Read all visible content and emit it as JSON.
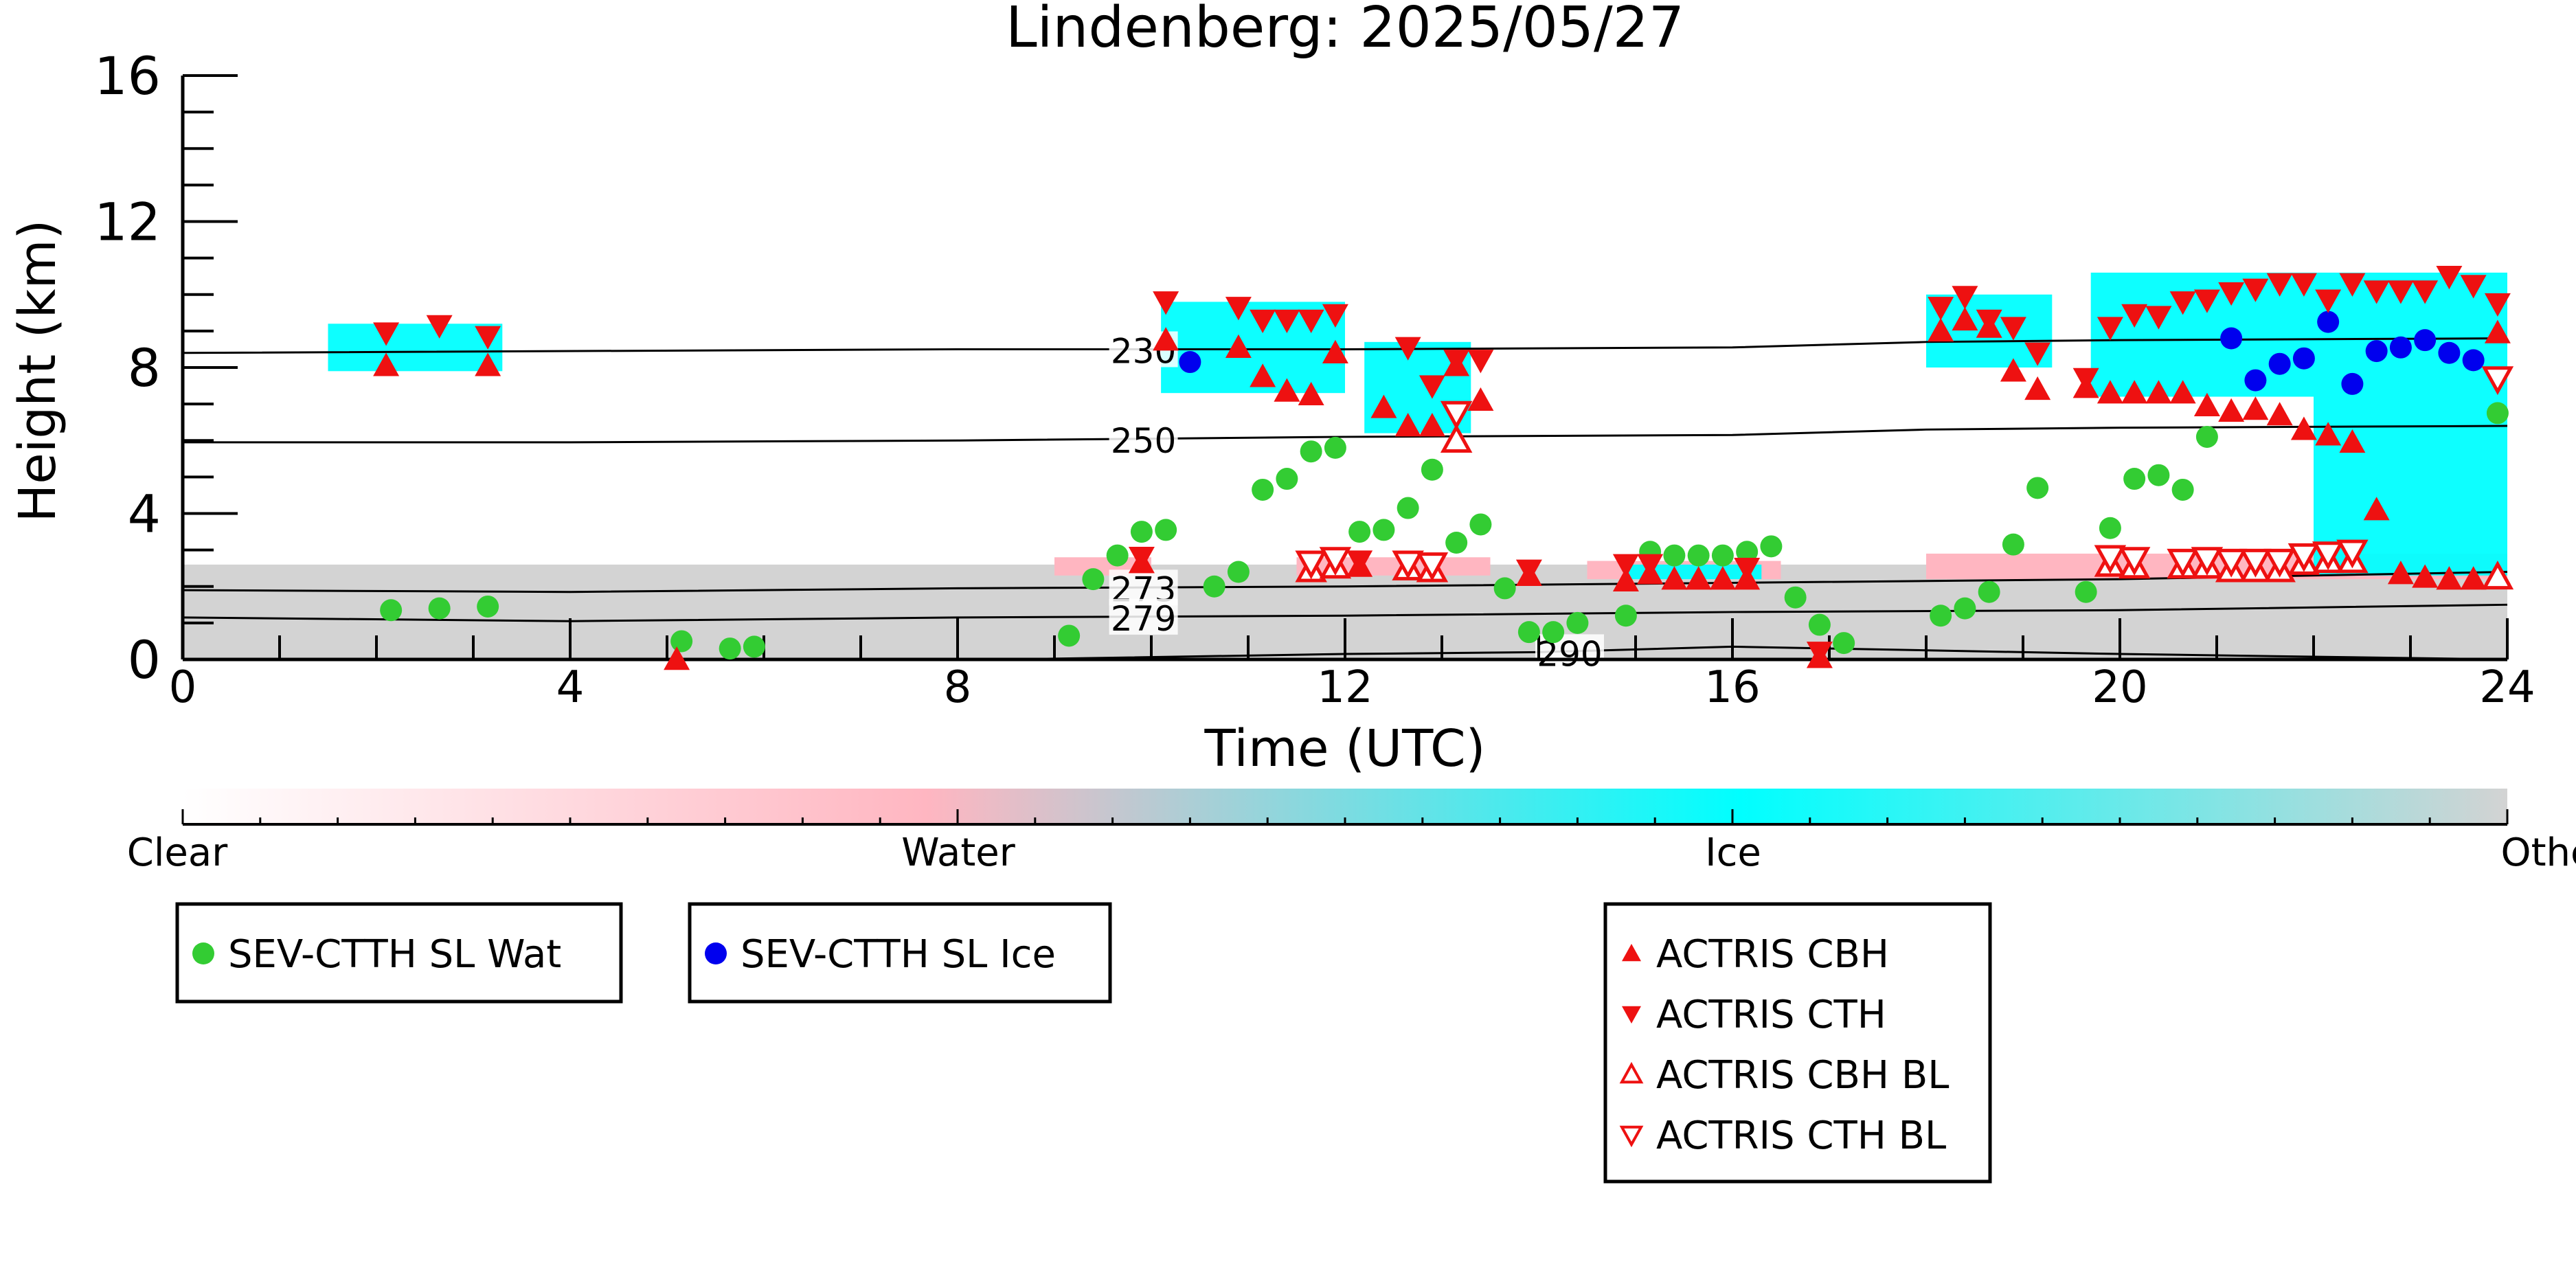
{
  "chart_data": {
    "type": "scatter",
    "title": "Lindenberg: 2025/05/27",
    "xlabel": "Time (UTC)",
    "ylabel": "Height (km)",
    "xlim": [
      0,
      24
    ],
    "ylim": [
      0,
      16
    ],
    "x_ticks": [
      0,
      4,
      8,
      12,
      16,
      20,
      24
    ],
    "y_ticks": [
      0,
      4,
      8,
      12,
      16
    ],
    "grid": false,
    "colorbar": {
      "labels": [
        "Clear",
        "Water",
        "Ice",
        "Other"
      ],
      "colors": [
        "#ffffff",
        "#ffb6c1",
        "#00ffff",
        "#d3d3d3"
      ]
    },
    "temperature_contours": [
      {
        "label": "230",
        "x": [
          0,
          8,
          12,
          16,
          18,
          20,
          24
        ],
        "y": [
          8.4,
          8.5,
          8.5,
          8.55,
          8.7,
          8.75,
          8.8
        ],
        "label_x": 9.6
      },
      {
        "label": "250",
        "x": [
          0,
          4,
          8,
          12,
          16,
          18,
          20,
          24
        ],
        "y": [
          5.95,
          5.95,
          6.0,
          6.1,
          6.15,
          6.3,
          6.35,
          6.4
        ],
        "label_x": 9.6
      },
      {
        "label": "273",
        "x": [
          0,
          4,
          8,
          12,
          16,
          20,
          24
        ],
        "y": [
          1.9,
          1.85,
          1.95,
          2.0,
          2.1,
          2.2,
          2.4
        ],
        "label_x": 9.6
      },
      {
        "label": "279",
        "x": [
          0,
          4,
          8,
          12,
          16,
          20,
          24
        ],
        "y": [
          1.15,
          1.05,
          1.15,
          1.2,
          1.3,
          1.35,
          1.5
        ],
        "label_x": 9.6
      },
      {
        "label": "290",
        "x": [
          8.5,
          12,
          14,
          16,
          20,
          24
        ],
        "y": [
          0.0,
          0.15,
          0.2,
          0.35,
          0.15,
          0.0
        ],
        "label_x": 14.0
      }
    ],
    "series": [
      {
        "name": "SEV-CTTH SL Wat",
        "marker": "circle",
        "color": "#33cc33",
        "points": [
          [
            2.15,
            1.35
          ],
          [
            2.65,
            1.4
          ],
          [
            3.15,
            1.45
          ],
          [
            5.15,
            0.5
          ],
          [
            5.65,
            0.3
          ],
          [
            5.9,
            0.35
          ],
          [
            9.15,
            0.65
          ],
          [
            9.4,
            2.2
          ],
          [
            9.65,
            2.85
          ],
          [
            9.9,
            3.5
          ],
          [
            10.15,
            3.55
          ],
          [
            10.65,
            2.0
          ],
          [
            10.9,
            2.4
          ],
          [
            11.15,
            4.65
          ],
          [
            11.4,
            4.95
          ],
          [
            11.65,
            5.7
          ],
          [
            11.9,
            5.8
          ],
          [
            12.15,
            3.5
          ],
          [
            12.4,
            3.55
          ],
          [
            12.65,
            4.15
          ],
          [
            12.9,
            5.2
          ],
          [
            13.15,
            3.2
          ],
          [
            13.4,
            3.7
          ],
          [
            13.65,
            1.95
          ],
          [
            13.9,
            0.75
          ],
          [
            14.15,
            0.75
          ],
          [
            14.4,
            1.0
          ],
          [
            14.9,
            1.2
          ],
          [
            15.15,
            2.95
          ],
          [
            15.4,
            2.85
          ],
          [
            15.65,
            2.85
          ],
          [
            15.9,
            2.85
          ],
          [
            16.15,
            2.95
          ],
          [
            16.4,
            3.1
          ],
          [
            16.65,
            1.7
          ],
          [
            16.9,
            0.95
          ],
          [
            17.15,
            0.45
          ],
          [
            18.15,
            1.2
          ],
          [
            18.4,
            1.4
          ],
          [
            18.65,
            1.85
          ],
          [
            18.9,
            3.15
          ],
          [
            19.15,
            4.7
          ],
          [
            19.65,
            1.85
          ],
          [
            19.9,
            3.6
          ],
          [
            20.15,
            4.95
          ],
          [
            20.4,
            5.05
          ],
          [
            20.65,
            4.65
          ],
          [
            20.9,
            6.1
          ],
          [
            23.9,
            6.75
          ]
        ]
      },
      {
        "name": "SEV-CTTH SL Ice",
        "marker": "circle",
        "color": "#0000ee",
        "points": [
          [
            10.4,
            8.15
          ],
          [
            21.15,
            8.8
          ],
          [
            21.4,
            7.65
          ],
          [
            21.65,
            8.1
          ],
          [
            21.9,
            8.25
          ],
          [
            22.15,
            9.25
          ],
          [
            22.4,
            7.55
          ],
          [
            22.65,
            8.45
          ],
          [
            22.9,
            8.55
          ],
          [
            23.15,
            8.75
          ],
          [
            23.4,
            8.4
          ],
          [
            23.65,
            8.2
          ]
        ]
      },
      {
        "name": "ACTRIS CBH",
        "marker": "triangle-up",
        "color": "#ee1111",
        "points": [
          [
            2.1,
            8.05
          ],
          [
            3.15,
            8.05
          ],
          [
            5.1,
            0.0
          ],
          [
            9.9,
            2.65
          ],
          [
            10.15,
            8.75
          ],
          [
            10.9,
            8.55
          ],
          [
            11.15,
            7.75
          ],
          [
            11.4,
            7.35
          ],
          [
            11.65,
            7.25
          ],
          [
            11.9,
            8.4
          ],
          [
            12.15,
            2.55
          ],
          [
            12.4,
            6.9
          ],
          [
            12.65,
            6.4
          ],
          [
            12.9,
            6.4
          ],
          [
            13.15,
            8.05
          ],
          [
            13.4,
            7.1
          ],
          [
            13.9,
            2.3
          ],
          [
            14.9,
            2.15
          ],
          [
            15.15,
            2.35
          ],
          [
            15.4,
            2.2
          ],
          [
            15.65,
            2.2
          ],
          [
            15.9,
            2.2
          ],
          [
            16.15,
            2.2
          ],
          [
            16.9,
            0.05
          ],
          [
            18.15,
            9.0
          ],
          [
            18.4,
            9.3
          ],
          [
            18.65,
            9.1
          ],
          [
            18.9,
            7.9
          ],
          [
            19.15,
            7.4
          ],
          [
            19.65,
            7.45
          ],
          [
            19.9,
            7.3
          ],
          [
            20.15,
            7.3
          ],
          [
            20.4,
            7.3
          ],
          [
            20.65,
            7.3
          ],
          [
            20.9,
            6.95
          ],
          [
            21.15,
            6.8
          ],
          [
            21.4,
            6.85
          ],
          [
            21.65,
            6.7
          ],
          [
            21.9,
            6.3
          ],
          [
            22.15,
            6.15
          ],
          [
            22.4,
            5.95
          ],
          [
            22.65,
            4.1
          ],
          [
            22.9,
            2.35
          ],
          [
            23.15,
            2.25
          ],
          [
            23.4,
            2.2
          ],
          [
            23.65,
            2.2
          ],
          [
            23.9,
            2.35
          ],
          [
            23.9,
            8.95
          ]
        ]
      },
      {
        "name": "ACTRIS CTH",
        "marker": "triangle-down",
        "color": "#ee1111",
        "points": [
          [
            2.1,
            8.95
          ],
          [
            2.65,
            9.15
          ],
          [
            3.15,
            8.85
          ],
          [
            9.9,
            2.8
          ],
          [
            10.15,
            9.8
          ],
          [
            10.9,
            9.65
          ],
          [
            11.15,
            9.3
          ],
          [
            11.4,
            9.3
          ],
          [
            11.65,
            9.3
          ],
          [
            11.9,
            9.45
          ],
          [
            12.15,
            2.7
          ],
          [
            12.65,
            8.55
          ],
          [
            12.9,
            7.5
          ],
          [
            13.15,
            8.2
          ],
          [
            13.4,
            8.2
          ],
          [
            13.9,
            2.45
          ],
          [
            14.9,
            2.6
          ],
          [
            15.15,
            2.6
          ],
          [
            16.15,
            2.5
          ],
          [
            16.9,
            0.2
          ],
          [
            18.15,
            9.65
          ],
          [
            18.4,
            9.95
          ],
          [
            18.65,
            9.3
          ],
          [
            18.9,
            9.1
          ],
          [
            19.15,
            8.4
          ],
          [
            19.65,
            7.7
          ],
          [
            19.9,
            9.1
          ],
          [
            20.15,
            9.45
          ],
          [
            20.4,
            9.4
          ],
          [
            20.65,
            9.8
          ],
          [
            20.9,
            9.85
          ],
          [
            21.15,
            10.05
          ],
          [
            21.4,
            10.15
          ],
          [
            21.65,
            10.3
          ],
          [
            21.9,
            10.3
          ],
          [
            22.15,
            9.85
          ],
          [
            22.4,
            10.3
          ],
          [
            22.65,
            10.1
          ],
          [
            22.9,
            10.1
          ],
          [
            23.15,
            10.1
          ],
          [
            23.4,
            10.5
          ],
          [
            23.65,
            10.25
          ],
          [
            23.9,
            9.75
          ]
        ]
      },
      {
        "name": "ACTRIS CBH BL",
        "marker": "triangle-up-open",
        "color": "#ee1111",
        "points": [
          [
            11.65,
            2.45
          ],
          [
            11.9,
            2.55
          ],
          [
            12.65,
            2.5
          ],
          [
            12.9,
            2.45
          ],
          [
            13.15,
            6.0
          ],
          [
            19.9,
            2.6
          ],
          [
            20.15,
            2.55
          ],
          [
            20.65,
            2.55
          ],
          [
            20.9,
            2.55
          ],
          [
            21.15,
            2.45
          ],
          [
            21.4,
            2.45
          ],
          [
            21.65,
            2.45
          ],
          [
            21.9,
            2.65
          ],
          [
            22.15,
            2.7
          ],
          [
            22.4,
            2.7
          ],
          [
            23.9,
            2.25
          ]
        ]
      },
      {
        "name": "ACTRIS CTH BL",
        "marker": "triangle-down-open",
        "color": "#ee1111",
        "points": [
          [
            11.65,
            2.65
          ],
          [
            11.9,
            2.75
          ],
          [
            12.65,
            2.65
          ],
          [
            12.9,
            2.6
          ],
          [
            13.15,
            6.75
          ],
          [
            19.9,
            2.8
          ],
          [
            20.15,
            2.75
          ],
          [
            20.65,
            2.7
          ],
          [
            20.9,
            2.75
          ],
          [
            21.15,
            2.7
          ],
          [
            21.4,
            2.7
          ],
          [
            21.65,
            2.7
          ],
          [
            21.9,
            2.85
          ],
          [
            22.15,
            2.9
          ],
          [
            22.4,
            2.95
          ],
          [
            23.9,
            7.7
          ]
        ]
      }
    ],
    "classification_regions": [
      {
        "class": "Other",
        "x0": 0.0,
        "x1": 24.0,
        "y0": 0.0,
        "y1": 2.6
      },
      {
        "class": "Water",
        "x0": 9.0,
        "x1": 10.0,
        "y0": 2.3,
        "y1": 2.8
      },
      {
        "class": "Water",
        "x0": 11.5,
        "x1": 13.5,
        "y0": 2.3,
        "y1": 2.8
      },
      {
        "class": "Water",
        "x0": 14.5,
        "x1": 16.5,
        "y0": 2.2,
        "y1": 2.7
      },
      {
        "class": "Water",
        "x0": 18.0,
        "x1": 24.0,
        "y0": 2.2,
        "y1": 2.9
      },
      {
        "class": "Ice",
        "x0": 1.5,
        "x1": 3.3,
        "y0": 7.9,
        "y1": 9.2
      },
      {
        "class": "Ice",
        "x0": 10.1,
        "x1": 12.0,
        "y0": 7.3,
        "y1": 9.8
      },
      {
        "class": "Ice",
        "x0": 12.2,
        "x1": 13.3,
        "y0": 6.2,
        "y1": 8.7
      },
      {
        "class": "Ice",
        "x0": 14.9,
        "x1": 16.3,
        "y0": 2.2,
        "y1": 2.6
      },
      {
        "class": "Ice",
        "x0": 18.0,
        "x1": 19.3,
        "y0": 8.0,
        "y1": 10.0
      },
      {
        "class": "Ice",
        "x0": 19.7,
        "x1": 24.0,
        "y0": 7.2,
        "y1": 10.6
      },
      {
        "class": "Ice",
        "x0": 22.0,
        "x1": 24.0,
        "y0": 2.3,
        "y1": 7.2
      }
    ]
  }
}
